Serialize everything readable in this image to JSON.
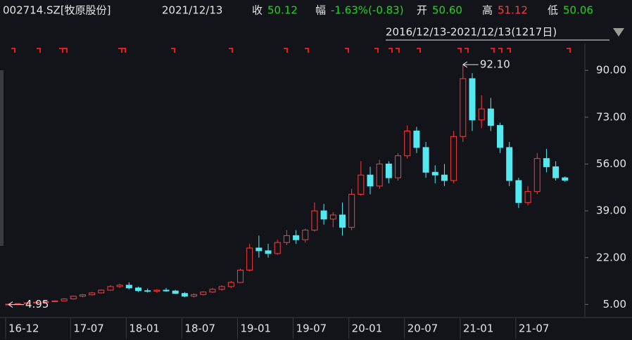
{
  "header": {
    "code": "002714.SZ[牧原股份]",
    "date": "2021/12/13",
    "close_label": "收",
    "close": "50.12",
    "change_label": "幅",
    "change": "-1.63%(-0.83)",
    "open_label": "开",
    "open": "50.60",
    "high_label": "高",
    "high": "51.12",
    "low_label": "低",
    "low": "50.06",
    "range": "2016/12/13-2021/12/13(1217日)"
  },
  "chart_data": {
    "type": "candlestick",
    "categories": [
      "16-12",
      null,
      null,
      null,
      null,
      null,
      null,
      "17-07",
      null,
      null,
      null,
      null,
      null,
      "18-01",
      null,
      null,
      null,
      null,
      null,
      "18-07",
      null,
      null,
      null,
      null,
      null,
      "19-01",
      null,
      null,
      null,
      null,
      null,
      "19-07",
      null,
      null,
      null,
      null,
      null,
      "20-01",
      null,
      null,
      null,
      null,
      null,
      "20-07",
      null,
      null,
      null,
      null,
      null,
      "21-01",
      null,
      null,
      null,
      null,
      null,
      "21-07",
      null,
      null,
      null,
      null,
      null
    ],
    "open": [
      5.0,
      5.1,
      5.3,
      5.6,
      5.8,
      6.0,
      6.3,
      7.0,
      8.0,
      8.5,
      9.2,
      10.2,
      11.5,
      12.0,
      11.0,
      10.0,
      9.8,
      10.2,
      9.9,
      9.0,
      8.0,
      8.6,
      9.5,
      10.5,
      11.5,
      13.0,
      17.5,
      25.5,
      24.5,
      23.5,
      27.5,
      30.0,
      28.5,
      32.0,
      39.0,
      36.0,
      37.5,
      33.0,
      45.0,
      52.0,
      48.0,
      56.0,
      51.0,
      59.0,
      68.0,
      62.0,
      53.0,
      52.0,
      50.0,
      66.0,
      87.0,
      72.0,
      76.0,
      70.0,
      62.0,
      50.0,
      42.0,
      46.0,
      58.0,
      55.0,
      51.0
    ],
    "high": [
      5.3,
      5.4,
      5.8,
      6.0,
      6.2,
      6.5,
      7.2,
      8.2,
      8.8,
      9.5,
      10.5,
      12.0,
      12.5,
      13.0,
      11.5,
      10.8,
      10.5,
      11.0,
      10.3,
      9.5,
      9.0,
      9.8,
      11.0,
      12.0,
      13.5,
      18.0,
      27.0,
      30.0,
      27.0,
      28.5,
      32.0,
      32.0,
      32.5,
      42.0,
      41.5,
      38.5,
      42.0,
      47.0,
      57.0,
      55.0,
      57.5,
      57.0,
      60.0,
      70.0,
      69.5,
      64.0,
      55.5,
      56.0,
      68.0,
      92.1,
      89.0,
      81.0,
      80.0,
      71.0,
      64.0,
      51.0,
      48.0,
      60.0,
      61.5,
      57.0,
      51.5
    ],
    "low": [
      4.95,
      5.0,
      5.2,
      5.4,
      5.5,
      5.8,
      6.1,
      6.8,
      7.6,
      8.3,
      9.0,
      10.0,
      11.0,
      10.5,
      9.5,
      9.3,
      9.2,
      9.6,
      8.8,
      7.6,
      7.5,
      8.3,
      9.2,
      10.0,
      11.0,
      12.8,
      17.0,
      22.0,
      22.0,
      23.0,
      26.5,
      27.0,
      27.5,
      31.5,
      34.0,
      33.0,
      30.0,
      32.0,
      44.5,
      45.0,
      47.0,
      49.0,
      50.0,
      58.0,
      60.0,
      51.0,
      49.0,
      48.0,
      49.0,
      64.0,
      68.0,
      69.0,
      68.0,
      60.0,
      48.0,
      40.0,
      41.0,
      45.0,
      53.0,
      50.0,
      49.5
    ],
    "close": [
      5.1,
      5.3,
      5.6,
      5.8,
      6.0,
      6.3,
      7.0,
      8.0,
      8.5,
      9.2,
      10.2,
      11.5,
      12.0,
      11.0,
      10.0,
      9.8,
      10.2,
      9.9,
      9.0,
      8.0,
      8.6,
      9.5,
      10.5,
      11.5,
      13.0,
      17.5,
      25.5,
      24.5,
      23.5,
      27.5,
      30.0,
      28.5,
      32.0,
      39.0,
      36.0,
      37.5,
      33.0,
      45.0,
      52.0,
      48.0,
      56.0,
      51.0,
      59.0,
      68.0,
      62.0,
      53.0,
      52.0,
      50.0,
      66.0,
      87.0,
      72.0,
      76.0,
      70.0,
      62.0,
      50.0,
      42.0,
      46.0,
      58.0,
      55.0,
      51.0,
      50.12
    ],
    "up_color": "#ff3b3b",
    "down_color": "#54e8f0",
    "ylim": [
      0,
      100
    ],
    "yticks": [
      {
        "value": 5,
        "label": "5.00"
      },
      {
        "value": 22,
        "label": "22.00"
      },
      {
        "value": 39,
        "label": "39.00"
      },
      {
        "value": 56,
        "label": "56.00"
      },
      {
        "value": 73,
        "label": "73.00"
      },
      {
        "value": 90,
        "label": "90.00"
      }
    ],
    "annotations": {
      "max": "92.10",
      "min": "4.95"
    }
  }
}
